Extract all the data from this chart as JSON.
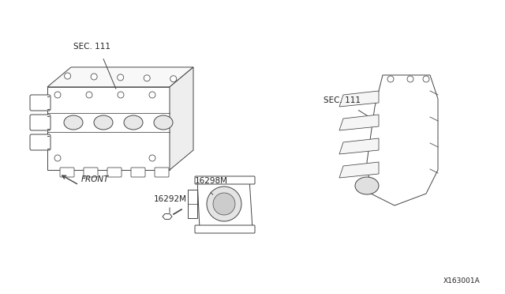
{
  "bg_color": "#ffffff",
  "line_color": "#444444",
  "label_color": "#222222",
  "diagram_id": "X163001A",
  "labels": {
    "sec111_top": "SEC. 111",
    "sec111_right": "SEC. 111",
    "front": "FRONT",
    "part1": "16298M",
    "part2": "16292M"
  },
  "figsize": [
    6.4,
    3.72
  ],
  "dpi": 100
}
